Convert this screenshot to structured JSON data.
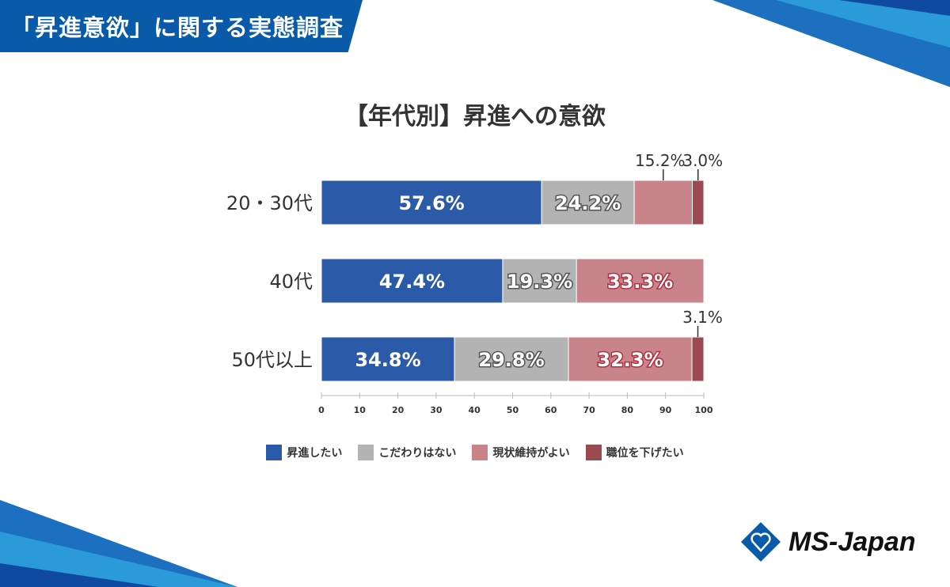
{
  "banner": {
    "title": "「昇進意欲」に関する実態調査"
  },
  "colors": {
    "s1": "#2a5aa8",
    "s2": "#b3b3b3",
    "s3": "#c9838a",
    "s4": "#9b4a50",
    "brand": "#0a5aaa"
  },
  "logo": {
    "text": "MS-Japan"
  },
  "chart_data": {
    "type": "bar",
    "orientation": "horizontal-stacked",
    "title": "【年代別】昇進への意欲",
    "categories": [
      "20・30代",
      "40代",
      "50代以上"
    ],
    "series": [
      {
        "name": "昇進したい",
        "values": [
          57.6,
          47.4,
          34.8
        ]
      },
      {
        "name": "こだわりはない",
        "values": [
          24.2,
          19.3,
          29.8
        ]
      },
      {
        "name": "現状維持がよい",
        "values": [
          15.2,
          33.3,
          32.3
        ]
      },
      {
        "name": "職位を下げたい",
        "values": [
          3.0,
          0,
          3.1
        ]
      }
    ],
    "xlim": [
      0,
      100
    ],
    "xticks": [
      "0",
      "10",
      "20",
      "30",
      "40",
      "50",
      "60",
      "70",
      "80",
      "90",
      "100"
    ],
    "legend": "bottom",
    "unit": "%"
  }
}
